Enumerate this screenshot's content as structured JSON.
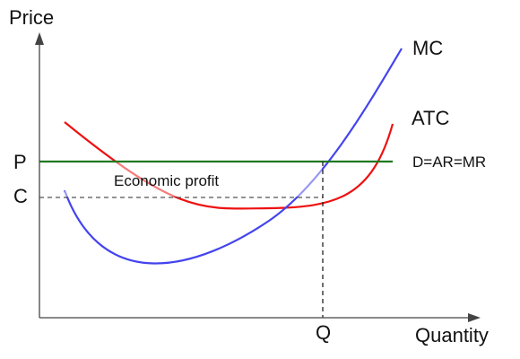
{
  "diagram": {
    "y_axis_label": "Price",
    "x_axis_label": "Quantity",
    "mc_label": "MC",
    "atc_label": "ATC",
    "demand_label": "D=AR=MR",
    "profit_label": "Economic profit",
    "price_label": "P",
    "cost_label": "C",
    "quantity_label": "Q"
  },
  "colors": {
    "mc": "#4444ee",
    "atc": "#ee1111",
    "demand": "#1f7a1f",
    "axis": "#444444",
    "guide": "#555555",
    "profit_fill": "#ffffff"
  }
}
